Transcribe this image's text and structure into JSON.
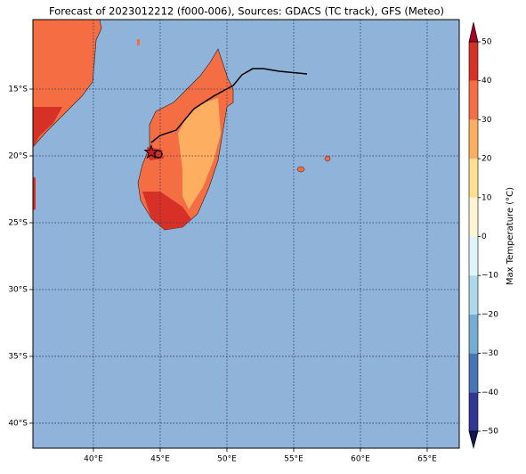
{
  "chart_data": {
    "type": "map",
    "title": "Forecast of 2023012212 (f000-006), Sources: GDACS (TC track), GFS (Meteo)",
    "xlim": [
      35.47,
      67.4
    ],
    "ylim": [
      -41.87,
      -9.8
    ],
    "xticks": [
      {
        "value": 40,
        "label": "40°E"
      },
      {
        "value": 45,
        "label": "45°E"
      },
      {
        "value": 50,
        "label": "50°E"
      },
      {
        "value": 55,
        "label": "55°E"
      },
      {
        "value": 60,
        "label": "60°E"
      },
      {
        "value": 65,
        "label": "65°E"
      }
    ],
    "yticks": [
      {
        "value": -15,
        "label": "15°S"
      },
      {
        "value": -20,
        "label": "20°S"
      },
      {
        "value": -25,
        "label": "25°S"
      },
      {
        "value": -30,
        "label": "30°S"
      },
      {
        "value": -35,
        "label": "35°S"
      },
      {
        "value": -40,
        "label": "40°S"
      }
    ],
    "grid": true,
    "colorbar": {
      "label": "Max Temperature (°C)",
      "lim": [
        -50,
        50
      ],
      "ticks": [
        {
          "value": -50,
          "label": "−50"
        },
        {
          "value": -40,
          "label": "−40"
        },
        {
          "value": -30,
          "label": "−30"
        },
        {
          "value": -20,
          "label": "−20"
        },
        {
          "value": -10,
          "label": "−10"
        },
        0,
        10,
        20,
        30,
        40,
        50
      ],
      "colors": [
        "#313695",
        "#4575b4",
        "#74add1",
        "#abd9e9",
        "#e0f3f8",
        "#fff4d6",
        "#fee090",
        "#fdae61",
        "#f46d43",
        "#d73027",
        "#a50026"
      ]
    },
    "track": {
      "color": "#000000",
      "x": [
        44.33,
        45.0,
        46.2,
        47.53,
        49.0,
        50.47,
        51.13,
        51.93,
        52.73,
        53.93,
        56.0
      ],
      "y": [
        -19.0,
        -18.47,
        -18.07,
        -16.47,
        -15.53,
        -14.73,
        -13.93,
        -13.47,
        -13.47,
        -13.67,
        -13.87
      ]
    },
    "markers": {
      "x": [
        44.33,
        44.87
      ],
      "y": [
        -19.73,
        -19.87
      ]
    }
  }
}
